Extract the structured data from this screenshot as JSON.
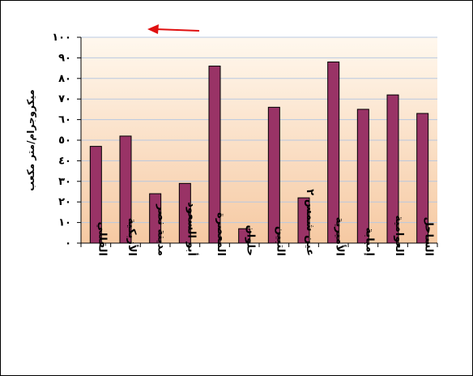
{
  "chart_data": {
    "type": "bar",
    "direction": "rtl",
    "ylabel": "ميكروجرام/متر مكعب",
    "xlabel": "",
    "title": "",
    "ylim": [
      0,
      100
    ],
    "yticks": [
      0,
      10,
      20,
      30,
      40,
      50,
      60,
      70,
      80,
      90,
      100
    ],
    "ytick_labels": [
      "٠",
      "١٠",
      "٢٠",
      "٣٠",
      "٤٠",
      "٥٠",
      "٦٠",
      "٧٠",
      "٨٠",
      "٩٠",
      "١٠٠"
    ],
    "categories": [
      "الساحل",
      "العوامية",
      "إمبابة",
      "الأميرية",
      "عين شمس ٢",
      "التبين",
      "حلوان",
      "المعصرة",
      "أبو السعود",
      "مدينة نصر",
      "الأزبكية",
      "القللي"
    ],
    "values": [
      63,
      72,
      65,
      88,
      22,
      66,
      7,
      86,
      29,
      24,
      52,
      47
    ],
    "grid": true,
    "legend": "none",
    "colors": {
      "bar": "#993366",
      "bar_edge": "#000000",
      "grid": "#b8c8e0",
      "plot_top": "#fff8ee",
      "plot_bottom": "#f6c9a2",
      "arrow": "#e01010"
    },
    "annotation": "arrow-pointing-left"
  }
}
